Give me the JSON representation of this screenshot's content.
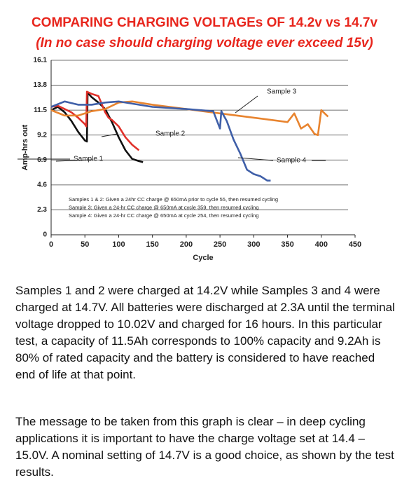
{
  "header": {
    "title": "COMPARING CHARGING VOLTAGEs OF 14.2v vs 14.7v",
    "subtitle": "(In no case should charging voltage ever exceed 15v)"
  },
  "chart_data": {
    "type": "line",
    "x_label": "Cycle",
    "y_label": "Amp-hrs out",
    "xlim": [
      0,
      450
    ],
    "xticks": [
      0,
      50,
      100,
      150,
      200,
      250,
      300,
      350,
      400,
      450
    ],
    "ylim": [
      0,
      16.1
    ],
    "yticks": [
      0,
      2.3,
      4.6,
      6.9,
      9.2,
      11.5,
      13.8,
      16.1
    ],
    "grid": true,
    "series": [
      {
        "name": "Sample 1",
        "color": "#111111",
        "x": [
          0,
          10,
          20,
          30,
          40,
          50,
          53,
          54,
          60,
          70,
          80,
          90,
          100,
          110,
          120,
          130,
          136
        ],
        "values": [
          11.5,
          11.8,
          11.3,
          10.5,
          9.5,
          8.7,
          8.6,
          13.1,
          12.7,
          12.2,
          11.6,
          10.4,
          9.0,
          7.8,
          7.0,
          6.8,
          6.7
        ]
      },
      {
        "name": "Sample 2",
        "color": "#e0312a",
        "x": [
          0,
          10,
          20,
          30,
          40,
          50,
          52,
          53,
          60,
          70,
          80,
          85,
          90,
          100,
          110,
          120,
          130
        ],
        "values": [
          11.8,
          11.9,
          11.6,
          11.3,
          10.8,
          10.2,
          10.0,
          13.2,
          13.0,
          12.8,
          11.3,
          10.8,
          10.6,
          10.0,
          9.0,
          8.3,
          7.8
        ]
      },
      {
        "name": "Sample 3",
        "color": "#e8842f",
        "x": [
          0,
          20,
          40,
          60,
          80,
          100,
          120,
          150,
          200,
          250,
          300,
          350,
          360,
          370,
          380,
          390,
          395,
          400,
          410
        ],
        "values": [
          11.5,
          11.0,
          11.0,
          11.4,
          11.6,
          12.2,
          12.3,
          12.0,
          11.6,
          11.2,
          10.8,
          10.4,
          11.2,
          9.8,
          10.2,
          9.3,
          9.2,
          11.5,
          10.9
        ]
      },
      {
        "name": "Sample 4",
        "color": "#3f5fa8",
        "x": [
          0,
          20,
          40,
          60,
          80,
          100,
          150,
          200,
          240,
          250,
          252,
          260,
          270,
          280,
          290,
          300,
          310,
          320,
          325
        ],
        "values": [
          11.8,
          12.3,
          12.0,
          12.0,
          12.2,
          12.3,
          11.8,
          11.6,
          11.4,
          9.8,
          11.4,
          10.5,
          8.8,
          7.5,
          6.0,
          5.6,
          5.4,
          5.0,
          5.0
        ]
      }
    ],
    "notes": [
      "Samples 1 & 2: Given a 24hr CC charge @ 650mA prior to cycle 55, then resumed cycling",
      "Sample 3: Given a 24-hr CC charge @ 650mA at cycle 359, then resumed cycling",
      "Sample 4: Given a 24-hr CC charge @ 650mA at cycle 254, then resumed cycling"
    ]
  },
  "paragraphs": [
    "Samples 1 and 2 were charged at 14.2V while Samples 3 and 4 were charged at 14.7V. All batteries were discharged at 2.3A until the terminal voltage dropped to 10.02V and charged for 16 hours. In this particular test, a capacity of 11.5Ah corresponds to 100% capacity and 9.2Ah is 80% of rated capacity and the battery is considered to have reached end of life at that point.",
    "The message to be taken from this graph is clear – in deep cycling applications it is important to have the charge voltage set at 14.4 – 15.0V. A nominal setting of 14.7V is a good choice, as shown by the test results."
  ]
}
